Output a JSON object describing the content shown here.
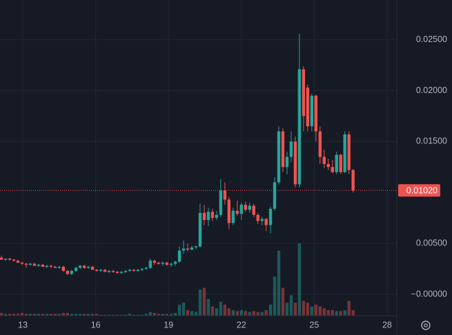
{
  "chart_data": {
    "type": "candlestick",
    "x": [
      12.12,
      12.29,
      12.46,
      12.63,
      12.8,
      12.97,
      13.14,
      13.31,
      13.48,
      13.65,
      13.82,
      13.99,
      14.16,
      14.33,
      14.5,
      14.67,
      14.84,
      15.01,
      15.19,
      15.36,
      15.53,
      15.7,
      15.87,
      16.04,
      16.21,
      16.38,
      16.55,
      16.72,
      16.89,
      17.06,
      17.23,
      17.4,
      17.57,
      17.74,
      17.91,
      18.08,
      18.25,
      18.42,
      18.59,
      18.76,
      18.93,
      19.11,
      19.28,
      19.45,
      19.62,
      19.79,
      19.96,
      20.13,
      20.3,
      20.47,
      20.64,
      20.81,
      20.98,
      21.15,
      21.32,
      21.49,
      21.66,
      21.83,
      22.0,
      22.17,
      22.34,
      22.51,
      22.68,
      22.85,
      23.02,
      23.2,
      23.37,
      23.54,
      23.71,
      23.88,
      24.05,
      24.22,
      24.39,
      24.56,
      24.73,
      24.9,
      25.07,
      25.24,
      25.41,
      25.58,
      25.75,
      25.92,
      26.09,
      26.26,
      26.43,
      26.6
    ],
    "open": [
      0.0036,
      0.0034,
      0.0035,
      0.0034,
      0.0033,
      0.0031,
      0.003,
      0.0029,
      0.003,
      0.0028,
      0.0029,
      0.0027,
      0.0028,
      0.0027,
      0.0026,
      0.0027,
      0.0023,
      0.002,
      0.0023,
      0.0026,
      0.0028,
      0.0026,
      0.0027,
      0.0024,
      0.0023,
      0.0024,
      0.0022,
      0.0023,
      0.0022,
      0.0021,
      0.0022,
      0.0023,
      0.0024,
      0.0023,
      0.0024,
      0.0025,
      0.0026,
      0.0033,
      0.0031,
      0.003,
      0.0031,
      0.0029,
      0.003,
      0.0032,
      0.0043,
      0.0045,
      0.0044,
      0.0046,
      0.0047,
      0.008,
      0.0073,
      0.0081,
      0.0075,
      0.0078,
      0.0102,
      0.0093,
      0.007,
      0.0082,
      0.0079,
      0.0088,
      0.0083,
      0.0087,
      0.0078,
      0.0072,
      0.0074,
      0.0068,
      0.0084,
      0.011,
      0.016,
      0.0125,
      0.0135,
      0.015,
      0.0108,
      0.0221,
      0.0203,
      0.0165,
      0.0195,
      0.016,
      0.0135,
      0.0128,
      0.0125,
      0.012,
      0.0137,
      0.012,
      0.0157,
      0.0122
    ],
    "high": [
      0.0038,
      0.0035,
      0.0036,
      0.0035,
      0.0034,
      0.0032,
      0.0031,
      0.0031,
      0.0031,
      0.003,
      0.003,
      0.0029,
      0.0029,
      0.0028,
      0.0028,
      0.0028,
      0.0024,
      0.0024,
      0.0027,
      0.0029,
      0.0029,
      0.0028,
      0.0028,
      0.0025,
      0.0025,
      0.0025,
      0.0024,
      0.0024,
      0.0023,
      0.0023,
      0.0024,
      0.0025,
      0.0025,
      0.0025,
      0.0026,
      0.0027,
      0.0035,
      0.0034,
      0.0032,
      0.0032,
      0.0032,
      0.0031,
      0.0033,
      0.0047,
      0.0053,
      0.005,
      0.0048,
      0.0048,
      0.0089,
      0.0088,
      0.0085,
      0.0084,
      0.0082,
      0.0113,
      0.011,
      0.0096,
      0.0085,
      0.0092,
      0.009,
      0.0091,
      0.009,
      0.0089,
      0.008,
      0.0076,
      0.0075,
      0.0086,
      0.0115,
      0.0165,
      0.0163,
      0.014,
      0.016,
      0.0155,
      0.0256,
      0.0224,
      0.0206,
      0.0197,
      0.0196,
      0.0165,
      0.0142,
      0.0133,
      0.0132,
      0.014,
      0.0138,
      0.016,
      0.016,
      0.0123
    ],
    "low": [
      0.0034,
      0.0033,
      0.0033,
      0.0032,
      0.0031,
      0.0029,
      0.0026,
      0.0028,
      0.0028,
      0.0027,
      0.0027,
      0.0026,
      0.0026,
      0.0026,
      0.0025,
      0.0022,
      0.0019,
      0.0019,
      0.0022,
      0.0025,
      0.0025,
      0.0025,
      0.0024,
      0.0022,
      0.0022,
      0.0022,
      0.0021,
      0.0021,
      0.002,
      0.002,
      0.0021,
      0.0022,
      0.0022,
      0.0022,
      0.0023,
      0.0024,
      0.0025,
      0.0029,
      0.0029,
      0.0028,
      0.0028,
      0.0027,
      0.0028,
      0.0031,
      0.004,
      0.0042,
      0.0043,
      0.0044,
      0.0046,
      0.0068,
      0.0067,
      0.0072,
      0.0073,
      0.0076,
      0.0088,
      0.0064,
      0.0068,
      0.0077,
      0.0073,
      0.0081,
      0.008,
      0.0076,
      0.0069,
      0.0068,
      0.0062,
      0.006,
      0.0082,
      0.0108,
      0.012,
      0.0118,
      0.013,
      0.0105,
      0.0105,
      0.016,
      0.016,
      0.016,
      0.015,
      0.0128,
      0.0124,
      0.0122,
      0.0119,
      0.0118,
      0.0118,
      0.0119,
      0.0118,
      0.01
    ],
    "close": [
      0.0034,
      0.0035,
      0.0034,
      0.0033,
      0.0031,
      0.003,
      0.0029,
      0.003,
      0.0028,
      0.0029,
      0.0027,
      0.0028,
      0.0027,
      0.0026,
      0.0027,
      0.0023,
      0.002,
      0.0023,
      0.0026,
      0.0028,
      0.0026,
      0.0027,
      0.0024,
      0.0023,
      0.0024,
      0.0022,
      0.0023,
      0.0022,
      0.0021,
      0.0022,
      0.0023,
      0.0024,
      0.0023,
      0.0024,
      0.0025,
      0.0026,
      0.0033,
      0.0031,
      0.003,
      0.0031,
      0.0029,
      0.003,
      0.0032,
      0.0043,
      0.0045,
      0.0044,
      0.0046,
      0.0047,
      0.008,
      0.0073,
      0.0081,
      0.0075,
      0.0078,
      0.0102,
      0.0093,
      0.007,
      0.0082,
      0.0079,
      0.0088,
      0.0083,
      0.0087,
      0.0078,
      0.0072,
      0.0074,
      0.0068,
      0.0084,
      0.011,
      0.016,
      0.0125,
      0.0135,
      0.015,
      0.0108,
      0.0221,
      0.0175,
      0.0165,
      0.0195,
      0.016,
      0.0135,
      0.0128,
      0.0125,
      0.012,
      0.0137,
      0.012,
      0.0157,
      0.0122,
      0.0102
    ],
    "volume": [
      3,
      2,
      2,
      2,
      2,
      3,
      2,
      2,
      2,
      2,
      2,
      2,
      2,
      2,
      2,
      3,
      3,
      2,
      2,
      2,
      2,
      2,
      2,
      2,
      1,
      1,
      1,
      1,
      1,
      1,
      1,
      2,
      1,
      1,
      1,
      2,
      4,
      3,
      2,
      2,
      2,
      2,
      3,
      12,
      14,
      6,
      5,
      4,
      28,
      30,
      18,
      10,
      8,
      15,
      12,
      8,
      6,
      5,
      6,
      5,
      4,
      5,
      4,
      4,
      6,
      12,
      42,
      70,
      30,
      14,
      22,
      14,
      78,
      16,
      14,
      10,
      12,
      10,
      8,
      6,
      6,
      5,
      5,
      6,
      16,
      6
    ],
    "up_color": "#26a69a",
    "down_color": "#ef5350",
    "xlim": [
      12.06,
      28.4
    ],
    "xticks": [
      13,
      16,
      19,
      22,
      25,
      28
    ],
    "ylim": [
      -0.0021,
      0.0289
    ],
    "yticks": [
      {
        "value": 0,
        "label": "−0.00000"
      },
      {
        "value": 0.005,
        "label": "0.00500"
      },
      {
        "value": 0.015,
        "label": "0.01500"
      },
      {
        "value": 0.02,
        "label": "0.02000"
      },
      {
        "value": 0.025,
        "label": "0.02500"
      }
    ],
    "last_price": {
      "value": 0.0102,
      "label": "0.01020"
    },
    "grid": true
  }
}
